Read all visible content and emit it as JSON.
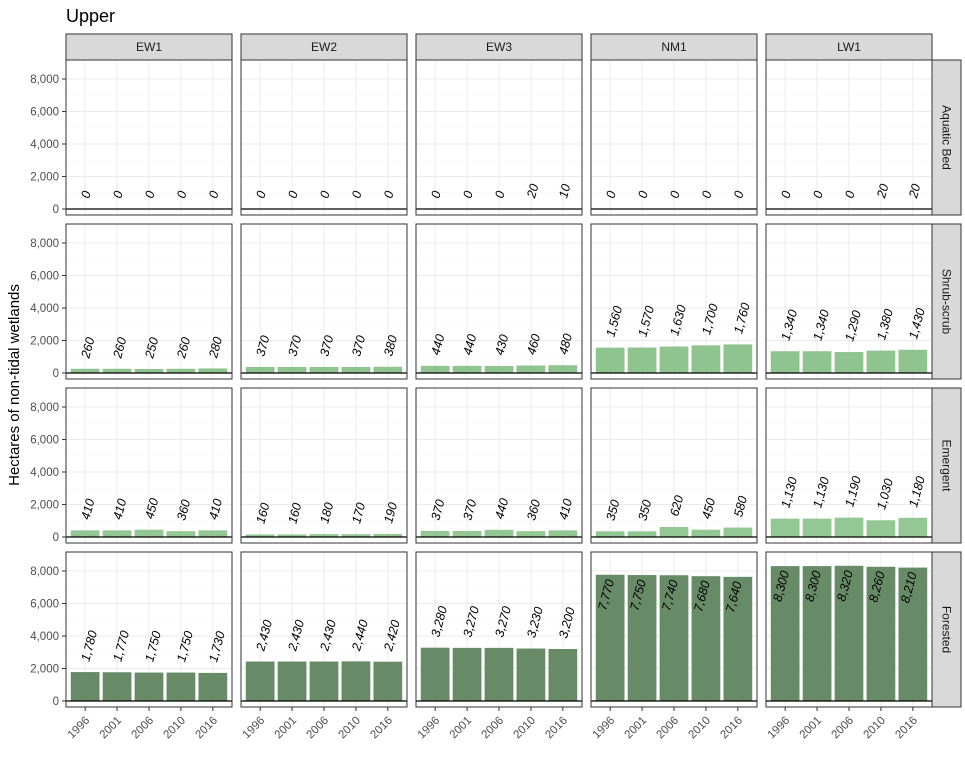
{
  "chart_data": {
    "type": "bar",
    "title": "Upper",
    "xlabel": "",
    "ylabel": "Hectares of non-tidal wetlands",
    "ylim": [
      0,
      8800
    ],
    "y_ticks": [
      0,
      2000,
      4000,
      6000,
      8000
    ],
    "y_tick_labels": [
      "0",
      "2,000",
      "4,000",
      "6,000",
      "8,000"
    ],
    "grid": true,
    "categories": [
      "1996",
      "2001",
      "2006",
      "2010",
      "2016"
    ],
    "columns": [
      "EW1",
      "EW2",
      "EW3",
      "NM1",
      "LW1"
    ],
    "rows": [
      "Aquatic Bed",
      "Shrub-scrub",
      "Emergent",
      "Forested"
    ],
    "colors": {
      "Aquatic Bed": "#8fbe8f",
      "Shrub-scrub": "#8fc48f",
      "Emergent": "#93c793",
      "Forested": "#678a67",
      "strip_bg": "#d9d9d9",
      "grid": "#ebebeb"
    },
    "values": {
      "Aquatic Bed": {
        "EW1": [
          0,
          0,
          0,
          0,
          0
        ],
        "EW2": [
          0,
          0,
          0,
          0,
          0
        ],
        "EW3": [
          0,
          0,
          0,
          20,
          10
        ],
        "NM1": [
          0,
          0,
          0,
          0,
          0
        ],
        "LW1": [
          0,
          0,
          0,
          20,
          20
        ]
      },
      "Shrub-scrub": {
        "EW1": [
          260,
          260,
          250,
          260,
          280
        ],
        "EW2": [
          370,
          370,
          370,
          370,
          380
        ],
        "EW3": [
          440,
          440,
          430,
          460,
          480
        ],
        "NM1": [
          1560,
          1570,
          1630,
          1700,
          1760
        ],
        "LW1": [
          1340,
          1340,
          1290,
          1380,
          1430
        ]
      },
      "Emergent": {
        "EW1": [
          410,
          410,
          450,
          360,
          410
        ],
        "EW2": [
          160,
          160,
          180,
          170,
          190
        ],
        "EW3": [
          370,
          370,
          440,
          360,
          410
        ],
        "NM1": [
          350,
          350,
          620,
          450,
          580
        ],
        "LW1": [
          1130,
          1130,
          1190,
          1030,
          1180
        ]
      },
      "Forested": {
        "EW1": [
          1780,
          1770,
          1750,
          1750,
          1730
        ],
        "EW2": [
          2430,
          2430,
          2430,
          2440,
          2420
        ],
        "EW3": [
          3280,
          3270,
          3270,
          3230,
          3200
        ],
        "NM1": [
          7770,
          7750,
          7740,
          7680,
          7640
        ],
        "LW1": [
          8300,
          8300,
          8320,
          8260,
          8210
        ]
      }
    },
    "labels": {
      "Aquatic Bed": {
        "EW1": [
          "0",
          "0",
          "0",
          "0",
          "0"
        ],
        "EW2": [
          "0",
          "0",
          "0",
          "0",
          "0"
        ],
        "EW3": [
          "0",
          "0",
          "0",
          "20",
          "10"
        ],
        "NM1": [
          "0",
          "0",
          "0",
          "0",
          "0"
        ],
        "LW1": [
          "0",
          "0",
          "0",
          "20",
          "20"
        ]
      },
      "Shrub-scrub": {
        "EW1": [
          "260",
          "260",
          "250",
          "260",
          "280"
        ],
        "EW2": [
          "370",
          "370",
          "370",
          "370",
          "380"
        ],
        "EW3": [
          "440",
          "440",
          "430",
          "460",
          "480"
        ],
        "NM1": [
          "1,560",
          "1,570",
          "1,630",
          "1,700",
          "1,760"
        ],
        "LW1": [
          "1,340",
          "1,340",
          "1,290",
          "1,380",
          "1,430"
        ]
      },
      "Emergent": {
        "EW1": [
          "410",
          "410",
          "450",
          "360",
          "410"
        ],
        "EW2": [
          "160",
          "160",
          "180",
          "170",
          "190"
        ],
        "EW3": [
          "370",
          "370",
          "440",
          "360",
          "410"
        ],
        "NM1": [
          "350",
          "350",
          "620",
          "450",
          "580"
        ],
        "LW1": [
          "1,130",
          "1,130",
          "1,190",
          "1,030",
          "1,180"
        ]
      },
      "Forested": {
        "EW1": [
          "1,780",
          "1,770",
          "1,750",
          "1,750",
          "1,730"
        ],
        "EW2": [
          "2,430",
          "2,430",
          "2,430",
          "2,440",
          "2,420"
        ],
        "EW3": [
          "3,280",
          "3,270",
          "3,270",
          "3,230",
          "3,200"
        ],
        "NM1": [
          "7,770",
          "7,750",
          "7,740",
          "7,680",
          "7,640"
        ],
        "LW1": [
          "8,300",
          "8,300",
          "8,320",
          "8,260",
          "8,210"
        ]
      }
    },
    "labels_inside_bar": [
      "NM1|Forested",
      "LW1|Forested"
    ]
  }
}
